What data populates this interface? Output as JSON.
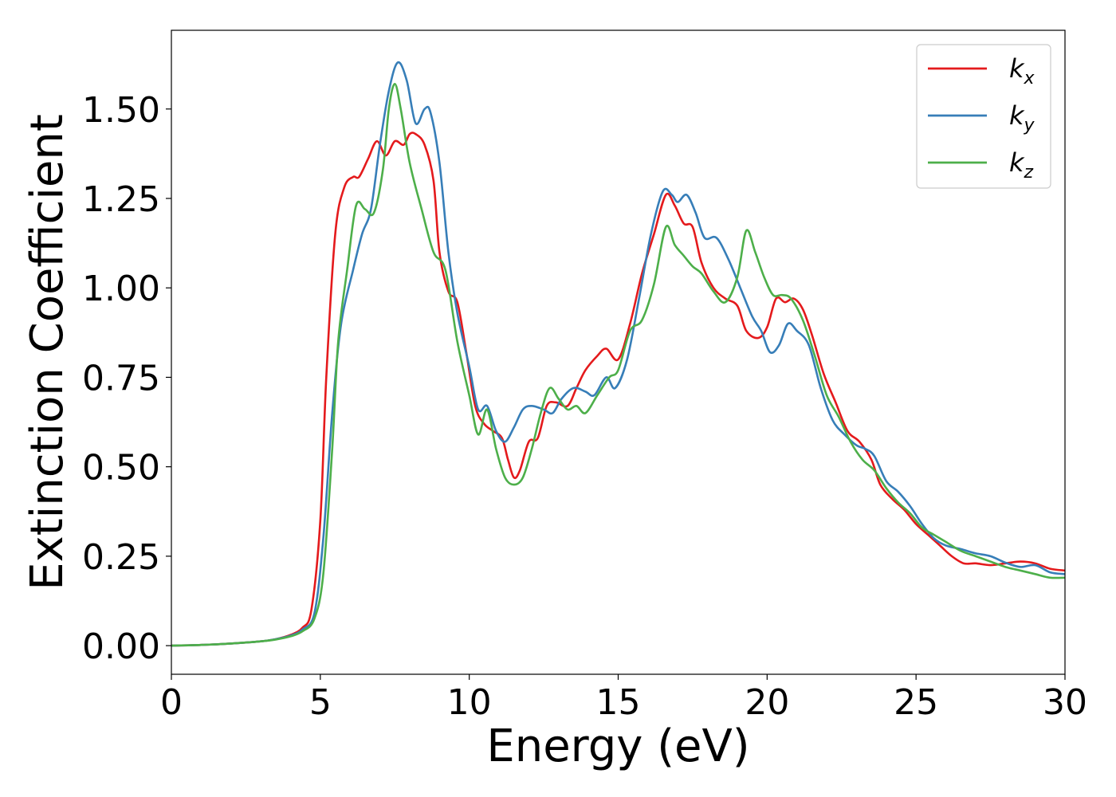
{
  "chart_data": {
    "type": "line",
    "xlabel": "Energy (eV)",
    "ylabel": "Extinction Coefficient",
    "xlim": [
      0,
      30
    ],
    "ylim": [
      -0.08,
      1.72
    ],
    "xticks": [
      0,
      5,
      10,
      15,
      20,
      25,
      30
    ],
    "xtick_labels": [
      "0",
      "5",
      "10",
      "15",
      "20",
      "25",
      "30"
    ],
    "yticks": [
      0.0,
      0.25,
      0.5,
      0.75,
      1.0,
      1.25,
      1.5
    ],
    "ytick_labels": [
      "0.00",
      "0.25",
      "0.50",
      "0.75",
      "1.00",
      "1.25",
      "1.50"
    ],
    "grid": false,
    "legend_position": "top-right",
    "series": [
      {
        "name": "k",
        "subscript": "x",
        "color": "#e41a1c",
        "points": [
          [
            0,
            0
          ],
          [
            1,
            0.002
          ],
          [
            2,
            0.006
          ],
          [
            3,
            0.012
          ],
          [
            3.5,
            0.018
          ],
          [
            4,
            0.03
          ],
          [
            4.4,
            0.05
          ],
          [
            4.7,
            0.1
          ],
          [
            5,
            0.35
          ],
          [
            5.2,
            0.75
          ],
          [
            5.5,
            1.15
          ],
          [
            5.8,
            1.28
          ],
          [
            6.1,
            1.31
          ],
          [
            6.3,
            1.31
          ],
          [
            6.6,
            1.36
          ],
          [
            6.9,
            1.41
          ],
          [
            7.2,
            1.37
          ],
          [
            7.5,
            1.41
          ],
          [
            7.8,
            1.4
          ],
          [
            8,
            1.43
          ],
          [
            8.2,
            1.43
          ],
          [
            8.5,
            1.4
          ],
          [
            8.8,
            1.3
          ],
          [
            9,
            1.1
          ],
          [
            9.3,
            0.99
          ],
          [
            9.6,
            0.96
          ],
          [
            9.9,
            0.82
          ],
          [
            10.2,
            0.67
          ],
          [
            10.5,
            0.62
          ],
          [
            10.8,
            0.6
          ],
          [
            11.1,
            0.58
          ],
          [
            11.3,
            0.52
          ],
          [
            11.5,
            0.47
          ],
          [
            11.7,
            0.49
          ],
          [
            12,
            0.57
          ],
          [
            12.3,
            0.58
          ],
          [
            12.6,
            0.67
          ],
          [
            12.9,
            0.68
          ],
          [
            13.3,
            0.67
          ],
          [
            13.6,
            0.72
          ],
          [
            13.9,
            0.77
          ],
          [
            14.3,
            0.81
          ],
          [
            14.6,
            0.83
          ],
          [
            15,
            0.8
          ],
          [
            15.4,
            0.9
          ],
          [
            15.8,
            1.04
          ],
          [
            16.2,
            1.15
          ],
          [
            16.6,
            1.26
          ],
          [
            16.9,
            1.23
          ],
          [
            17.2,
            1.18
          ],
          [
            17.5,
            1.17
          ],
          [
            17.8,
            1.07
          ],
          [
            18.2,
            1.0
          ],
          [
            18.6,
            0.97
          ],
          [
            19,
            0.95
          ],
          [
            19.3,
            0.88
          ],
          [
            19.7,
            0.86
          ],
          [
            20,
            0.89
          ],
          [
            20.3,
            0.97
          ],
          [
            20.6,
            0.96
          ],
          [
            20.9,
            0.97
          ],
          [
            21.2,
            0.94
          ],
          [
            21.5,
            0.87
          ],
          [
            21.9,
            0.76
          ],
          [
            22.3,
            0.68
          ],
          [
            22.7,
            0.6
          ],
          [
            23.1,
            0.57
          ],
          [
            23.5,
            0.52
          ],
          [
            23.8,
            0.45
          ],
          [
            24.2,
            0.41
          ],
          [
            24.6,
            0.38
          ],
          [
            25,
            0.34
          ],
          [
            25.4,
            0.31
          ],
          [
            25.8,
            0.28
          ],
          [
            26.2,
            0.25
          ],
          [
            26.6,
            0.23
          ],
          [
            27,
            0.23
          ],
          [
            27.5,
            0.225
          ],
          [
            28,
            0.23
          ],
          [
            28.5,
            0.235
          ],
          [
            29,
            0.23
          ],
          [
            29.5,
            0.215
          ],
          [
            30,
            0.21
          ]
        ]
      },
      {
        "name": "k",
        "subscript": "y",
        "color": "#377eb8",
        "points": [
          [
            0,
            0
          ],
          [
            1,
            0.002
          ],
          [
            2,
            0.006
          ],
          [
            3,
            0.012
          ],
          [
            3.5,
            0.018
          ],
          [
            4,
            0.028
          ],
          [
            4.4,
            0.045
          ],
          [
            4.8,
            0.09
          ],
          [
            5.1,
            0.3
          ],
          [
            5.4,
            0.65
          ],
          [
            5.7,
            0.9
          ],
          [
            6.1,
            1.05
          ],
          [
            6.4,
            1.15
          ],
          [
            6.7,
            1.22
          ],
          [
            7,
            1.4
          ],
          [
            7.3,
            1.55
          ],
          [
            7.6,
            1.63
          ],
          [
            7.9,
            1.58
          ],
          [
            8.2,
            1.46
          ],
          [
            8.5,
            1.5
          ],
          [
            8.7,
            1.49
          ],
          [
            9,
            1.35
          ],
          [
            9.3,
            1.1
          ],
          [
            9.6,
            0.93
          ],
          [
            10,
            0.78
          ],
          [
            10.3,
            0.66
          ],
          [
            10.6,
            0.67
          ],
          [
            10.9,
            0.6
          ],
          [
            11.2,
            0.57
          ],
          [
            11.5,
            0.61
          ],
          [
            11.8,
            0.66
          ],
          [
            12.1,
            0.67
          ],
          [
            12.5,
            0.66
          ],
          [
            12.8,
            0.65
          ],
          [
            13.1,
            0.69
          ],
          [
            13.5,
            0.72
          ],
          [
            13.9,
            0.71
          ],
          [
            14.2,
            0.7
          ],
          [
            14.6,
            0.75
          ],
          [
            14.9,
            0.72
          ],
          [
            15.3,
            0.8
          ],
          [
            15.7,
            0.97
          ],
          [
            16.1,
            1.15
          ],
          [
            16.5,
            1.27
          ],
          [
            16.8,
            1.26
          ],
          [
            17,
            1.24
          ],
          [
            17.3,
            1.26
          ],
          [
            17.6,
            1.21
          ],
          [
            17.9,
            1.14
          ],
          [
            18.3,
            1.14
          ],
          [
            18.7,
            1.08
          ],
          [
            19.1,
            1.0
          ],
          [
            19.5,
            0.92
          ],
          [
            19.8,
            0.88
          ],
          [
            20.1,
            0.82
          ],
          [
            20.4,
            0.84
          ],
          [
            20.7,
            0.9
          ],
          [
            21,
            0.88
          ],
          [
            21.4,
            0.84
          ],
          [
            21.8,
            0.72
          ],
          [
            22.2,
            0.63
          ],
          [
            22.6,
            0.59
          ],
          [
            23,
            0.56
          ],
          [
            23.3,
            0.55
          ],
          [
            23.6,
            0.53
          ],
          [
            24,
            0.46
          ],
          [
            24.4,
            0.43
          ],
          [
            24.8,
            0.39
          ],
          [
            25.2,
            0.34
          ],
          [
            25.6,
            0.3
          ],
          [
            26,
            0.28
          ],
          [
            26.5,
            0.27
          ],
          [
            27,
            0.258
          ],
          [
            27.5,
            0.25
          ],
          [
            28,
            0.232
          ],
          [
            28.5,
            0.22
          ],
          [
            29,
            0.225
          ],
          [
            29.5,
            0.205
          ],
          [
            30,
            0.2
          ]
        ]
      },
      {
        "name": "k",
        "subscript": "z",
        "color": "#4daf4a",
        "points": [
          [
            0,
            0
          ],
          [
            1,
            0.002
          ],
          [
            2,
            0.006
          ],
          [
            3,
            0.012
          ],
          [
            3.5,
            0.017
          ],
          [
            4,
            0.026
          ],
          [
            4.4,
            0.04
          ],
          [
            4.8,
            0.075
          ],
          [
            5.1,
            0.2
          ],
          [
            5.4,
            0.55
          ],
          [
            5.6,
            0.85
          ],
          [
            5.9,
            1.05
          ],
          [
            6.2,
            1.23
          ],
          [
            6.5,
            1.22
          ],
          [
            6.8,
            1.21
          ],
          [
            7.1,
            1.33
          ],
          [
            7.3,
            1.5
          ],
          [
            7.5,
            1.57
          ],
          [
            7.7,
            1.5
          ],
          [
            8,
            1.35
          ],
          [
            8.4,
            1.22
          ],
          [
            8.8,
            1.1
          ],
          [
            9.2,
            1.05
          ],
          [
            9.6,
            0.85
          ],
          [
            10,
            0.7
          ],
          [
            10.3,
            0.59
          ],
          [
            10.6,
            0.66
          ],
          [
            10.9,
            0.55
          ],
          [
            11.2,
            0.47
          ],
          [
            11.5,
            0.45
          ],
          [
            11.8,
            0.47
          ],
          [
            12.1,
            0.55
          ],
          [
            12.4,
            0.65
          ],
          [
            12.7,
            0.72
          ],
          [
            13,
            0.69
          ],
          [
            13.3,
            0.66
          ],
          [
            13.6,
            0.67
          ],
          [
            13.9,
            0.65
          ],
          [
            14.3,
            0.7
          ],
          [
            14.7,
            0.75
          ],
          [
            15,
            0.77
          ],
          [
            15.4,
            0.88
          ],
          [
            15.8,
            0.91
          ],
          [
            16.2,
            1.01
          ],
          [
            16.6,
            1.17
          ],
          [
            16.9,
            1.12
          ],
          [
            17.2,
            1.09
          ],
          [
            17.5,
            1.06
          ],
          [
            17.8,
            1.04
          ],
          [
            18.2,
            0.99
          ],
          [
            18.6,
            0.96
          ],
          [
            19,
            1.03
          ],
          [
            19.3,
            1.16
          ],
          [
            19.6,
            1.1
          ],
          [
            19.9,
            1.03
          ],
          [
            20.2,
            0.98
          ],
          [
            20.5,
            0.98
          ],
          [
            20.8,
            0.97
          ],
          [
            21.2,
            0.91
          ],
          [
            21.6,
            0.81
          ],
          [
            22,
            0.7
          ],
          [
            22.4,
            0.64
          ],
          [
            22.8,
            0.57
          ],
          [
            23.2,
            0.52
          ],
          [
            23.6,
            0.49
          ],
          [
            24,
            0.44
          ],
          [
            24.4,
            0.4
          ],
          [
            24.8,
            0.37
          ],
          [
            25.2,
            0.33
          ],
          [
            25.6,
            0.31
          ],
          [
            26,
            0.29
          ],
          [
            26.5,
            0.265
          ],
          [
            27,
            0.25
          ],
          [
            27.5,
            0.235
          ],
          [
            28,
            0.22
          ],
          [
            28.5,
            0.21
          ],
          [
            29,
            0.2
          ],
          [
            29.5,
            0.19
          ],
          [
            30,
            0.19
          ]
        ]
      }
    ]
  }
}
